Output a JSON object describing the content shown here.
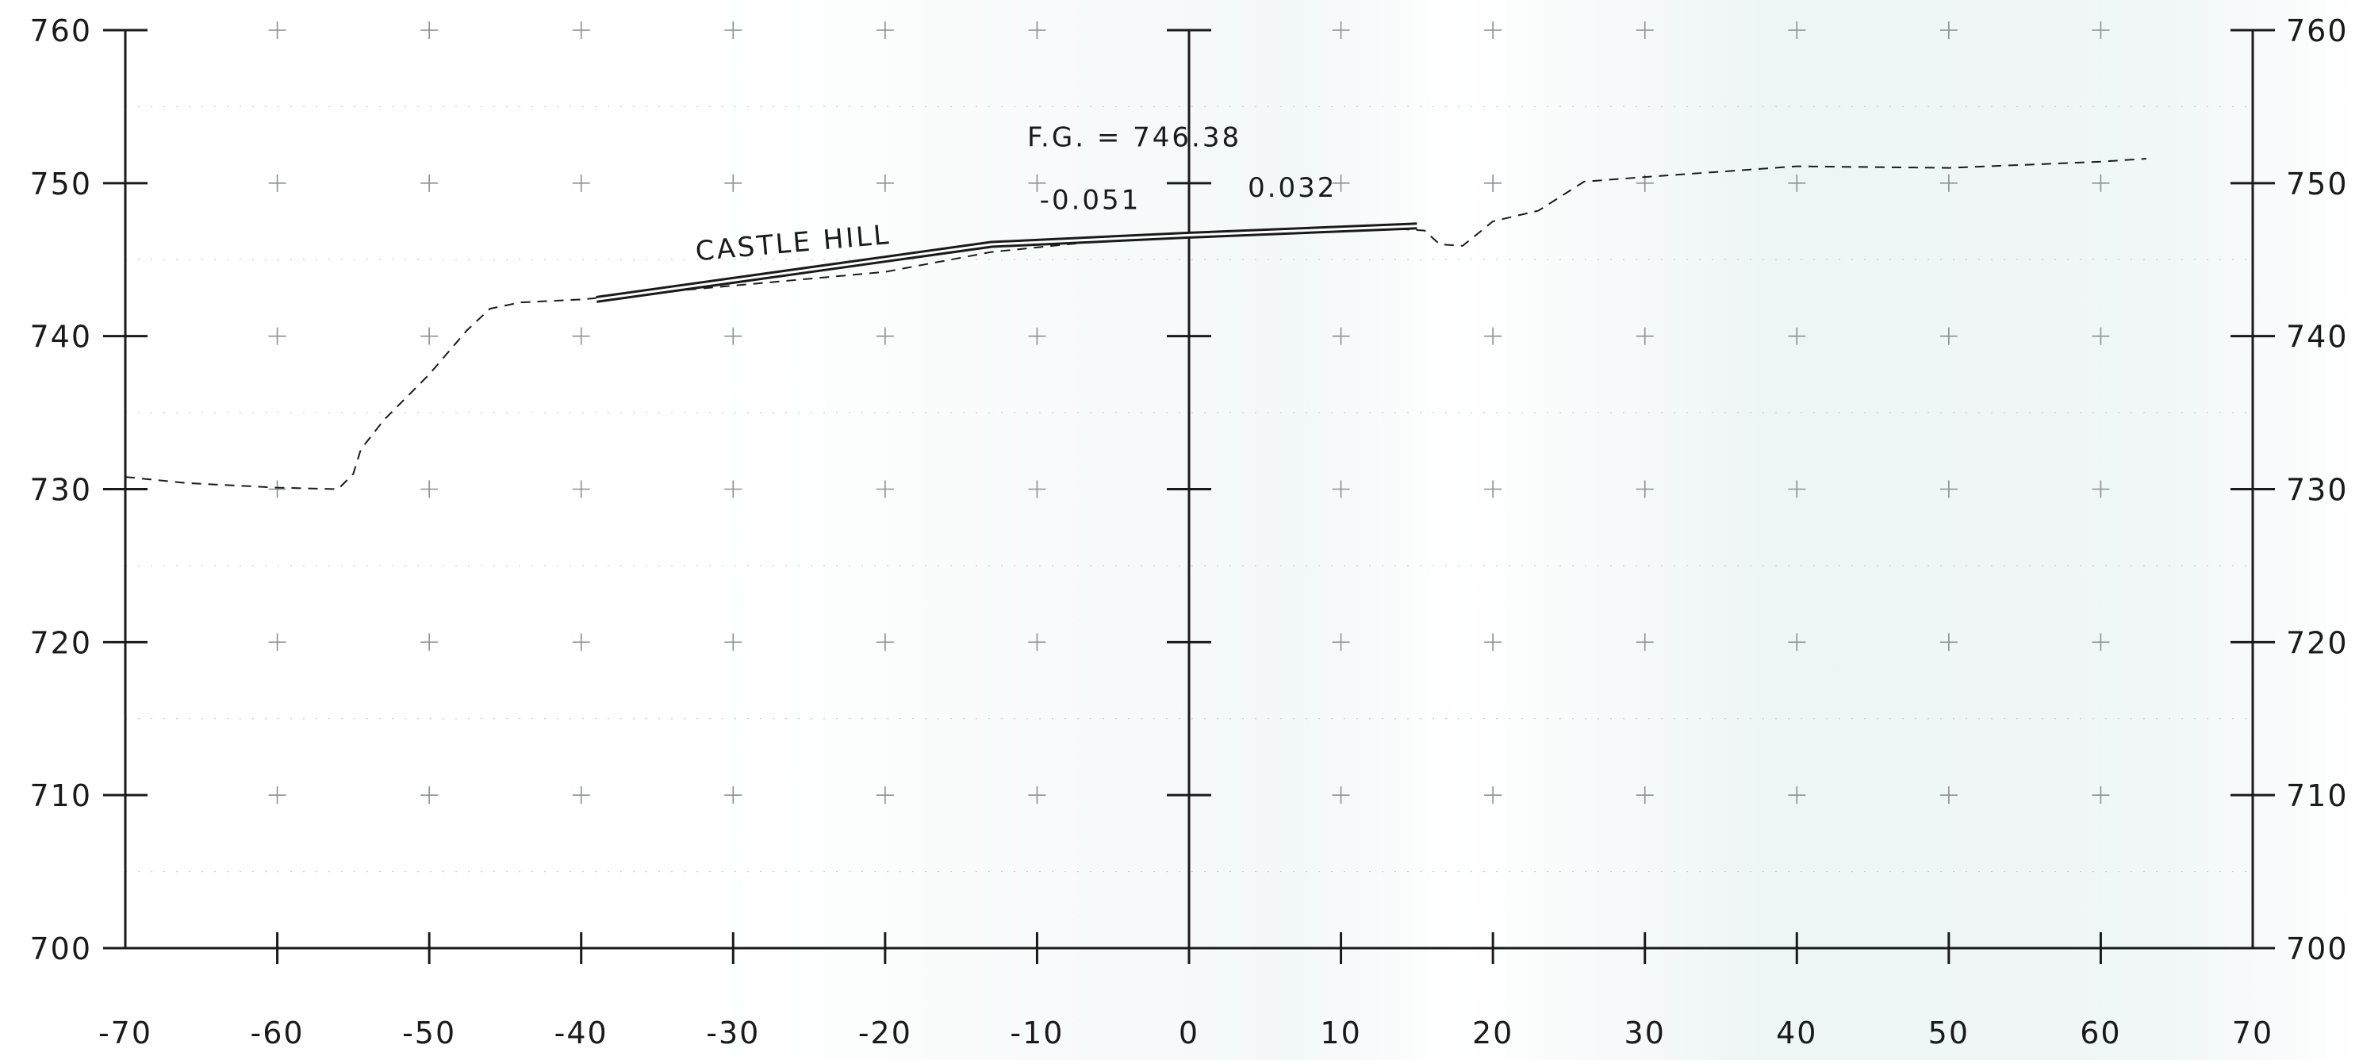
{
  "chart_data": {
    "type": "line",
    "x_ticks": [
      -70,
      -60,
      -50,
      -40,
      -30,
      -20,
      -10,
      0,
      10,
      20,
      30,
      40,
      50,
      60,
      70
    ],
    "y_ticks_left": [
      700,
      710,
      720,
      730,
      740,
      750,
      760
    ],
    "y_ticks_right": [
      700,
      710,
      720,
      730,
      740,
      750,
      760
    ],
    "xlim": [
      -70,
      70
    ],
    "ylim": [
      700,
      760
    ],
    "grid": "plus-markers",
    "series": [
      {
        "style": "dashed",
        "color": "#1a1a1a",
        "points": [
          [
            -70,
            730.8
          ],
          [
            -66,
            730.4
          ],
          [
            -60,
            730.1
          ],
          [
            -56,
            730.0
          ],
          [
            -55,
            731.0
          ],
          [
            -54.5,
            732.6
          ],
          [
            -53,
            734.5
          ],
          [
            -50,
            737.5
          ],
          [
            -47.5,
            740.4
          ],
          [
            -46,
            741.8
          ],
          [
            -44,
            742.2
          ],
          [
            -40,
            742.4
          ],
          [
            -30,
            743.3
          ],
          [
            -20,
            744.2
          ],
          [
            -13,
            745.5
          ],
          [
            -5,
            746.3
          ],
          [
            0,
            746.5
          ],
          [
            5,
            746.7
          ],
          [
            14,
            747.0
          ],
          [
            15.5,
            746.9
          ],
          [
            16.5,
            746.0
          ],
          [
            18,
            745.9
          ],
          [
            19,
            746.7
          ],
          [
            20,
            747.5
          ],
          [
            23,
            748.2
          ],
          [
            26,
            750.1
          ],
          [
            30,
            750.4
          ],
          [
            40,
            751.1
          ],
          [
            50,
            751.0
          ],
          [
            60,
            751.4
          ],
          [
            63,
            751.6
          ]
        ]
      },
      {
        "style": "solid",
        "color": "#1a1a1a",
        "points": [
          [
            -39,
            742.4
          ],
          [
            -13,
            746.0
          ],
          [
            0,
            746.6
          ],
          [
            15,
            747.2
          ]
        ]
      }
    ],
    "annotations": [
      {
        "text": "F.G. = 746.38",
        "x": -3.6,
        "y": 752.4
      },
      {
        "text": "-0.051",
        "x": -6.5,
        "y": 748.3
      },
      {
        "text": "0.032",
        "x": 6.8,
        "y": 749.1
      },
      {
        "text": "CASTLE HILL",
        "x": -26,
        "y": 745.5,
        "angle": -5
      }
    ]
  }
}
